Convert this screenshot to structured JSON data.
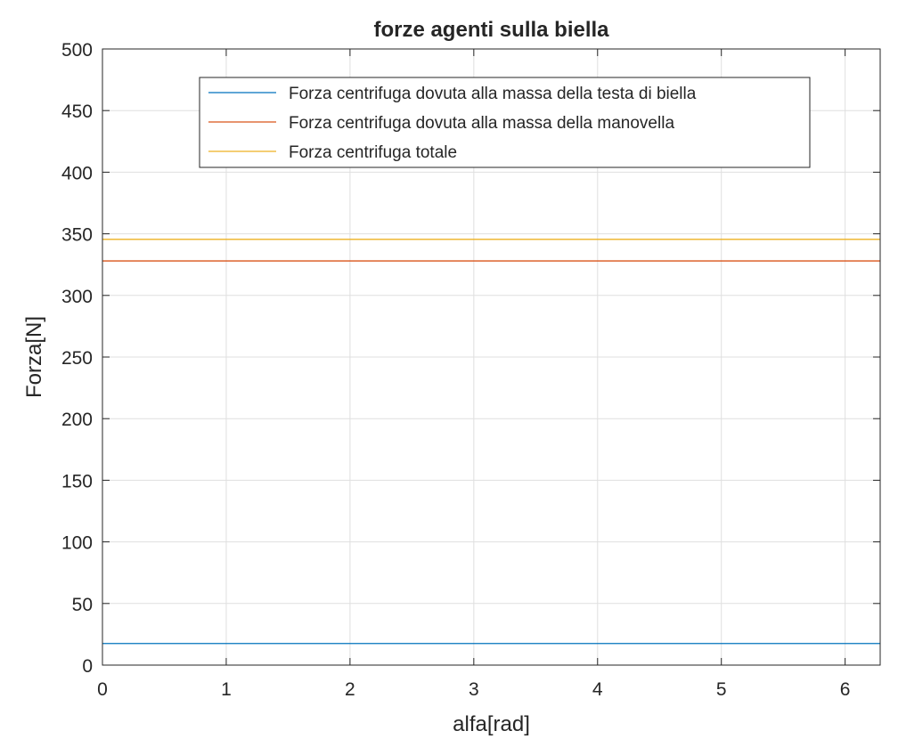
{
  "chart_data": {
    "type": "line",
    "title": "forze agenti sulla biella",
    "xlabel": "alfa[rad]",
    "ylabel": "Forza[N]",
    "xlim": [
      0,
      6.2832
    ],
    "ylim": [
      0,
      500
    ],
    "xticks": [
      "0",
      "1",
      "2",
      "3",
      "4",
      "5",
      "6"
    ],
    "yticks": [
      "0",
      "50",
      "100",
      "150",
      "200",
      "250",
      "300",
      "350",
      "400",
      "450",
      "500"
    ],
    "grid": true,
    "legend_position": "top-right",
    "series": [
      {
        "name": "Forza centrifuga dovuta alla massa della testa di biella",
        "color": "#0072BD",
        "x": [
          0,
          6.2832
        ],
        "y": [
          17.5,
          17.5
        ]
      },
      {
        "name": "Forza centrifuga dovuta alla massa della manovella",
        "color": "#D95319",
        "x": [
          0,
          6.2832
        ],
        "y": [
          328,
          328
        ]
      },
      {
        "name": "Forza centrifuga totale",
        "color": "#EDB120",
        "x": [
          0,
          6.2832
        ],
        "y": [
          345.5,
          345.5
        ]
      }
    ]
  }
}
